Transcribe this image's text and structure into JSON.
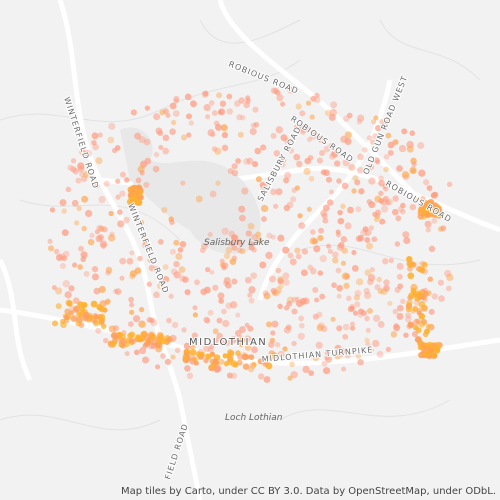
{
  "map": {
    "road_labels": [
      "ROBIOUS ROAD",
      "ROBIOUS ROAD",
      "ROBIOUS ROAD",
      "OLD GUN ROAD WEST",
      "WINTERFIELD ROAD",
      "WINTERFIELD ROAD",
      "SALISBURY ROAD",
      "MIDLOTHIAN TURNPIKE",
      "FIELD ROAD"
    ],
    "places": [
      "Salisbury Lake",
      "MIDLOTHIAN",
      "Loch Lothian"
    ],
    "attribution": "Map tiles by Carto, under CC BY 3.0. Data by OpenStreetMap, under ODbL."
  }
}
